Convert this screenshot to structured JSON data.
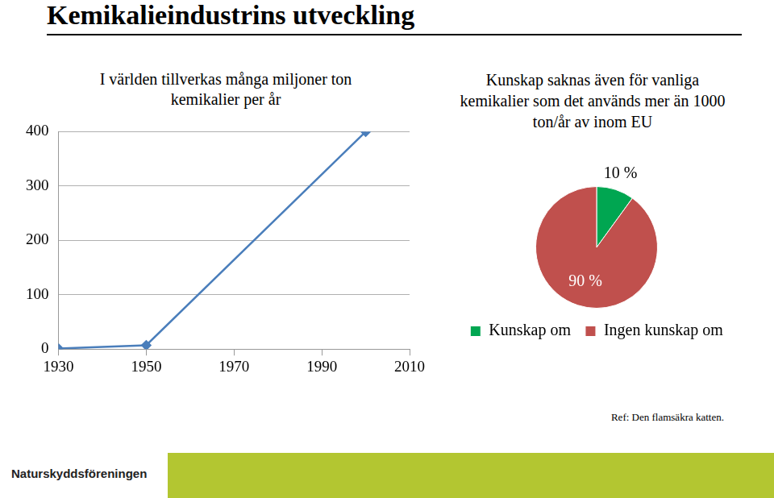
{
  "page": {
    "title": "Kemikalieindustrins utveckling",
    "reference": "Ref: Den flamsäkra katten.",
    "logo_text": "Naturskyddsföreningen"
  },
  "chart_data": [
    {
      "type": "line",
      "annotation": "I världen tillverkas många miljoner ton kemikalier per år",
      "x": [
        1930,
        1950,
        2000
      ],
      "values": [
        1,
        7,
        400
      ],
      "color": "#4a7ebb",
      "marker": "diamond",
      "xlim": [
        1930,
        2010
      ],
      "xticks": [
        1930,
        1950,
        1970,
        1990,
        2010
      ],
      "ylim": [
        0,
        400
      ],
      "yticks": [
        0,
        100,
        200,
        300,
        400
      ],
      "grid": true
    },
    {
      "type": "pie",
      "title": "Kunskap saknas även för vanliga kemikalier som det används mer än 1000 ton/år av inom EU",
      "categories": [
        "Kunskap om",
        "Ingen kunskap om"
      ],
      "values": [
        10,
        90
      ],
      "value_labels": [
        "10 %",
        "90 %"
      ],
      "colors": [
        "#00a651",
        "#c0504d"
      ],
      "legend": "bottom",
      "data_labels": true
    }
  ]
}
